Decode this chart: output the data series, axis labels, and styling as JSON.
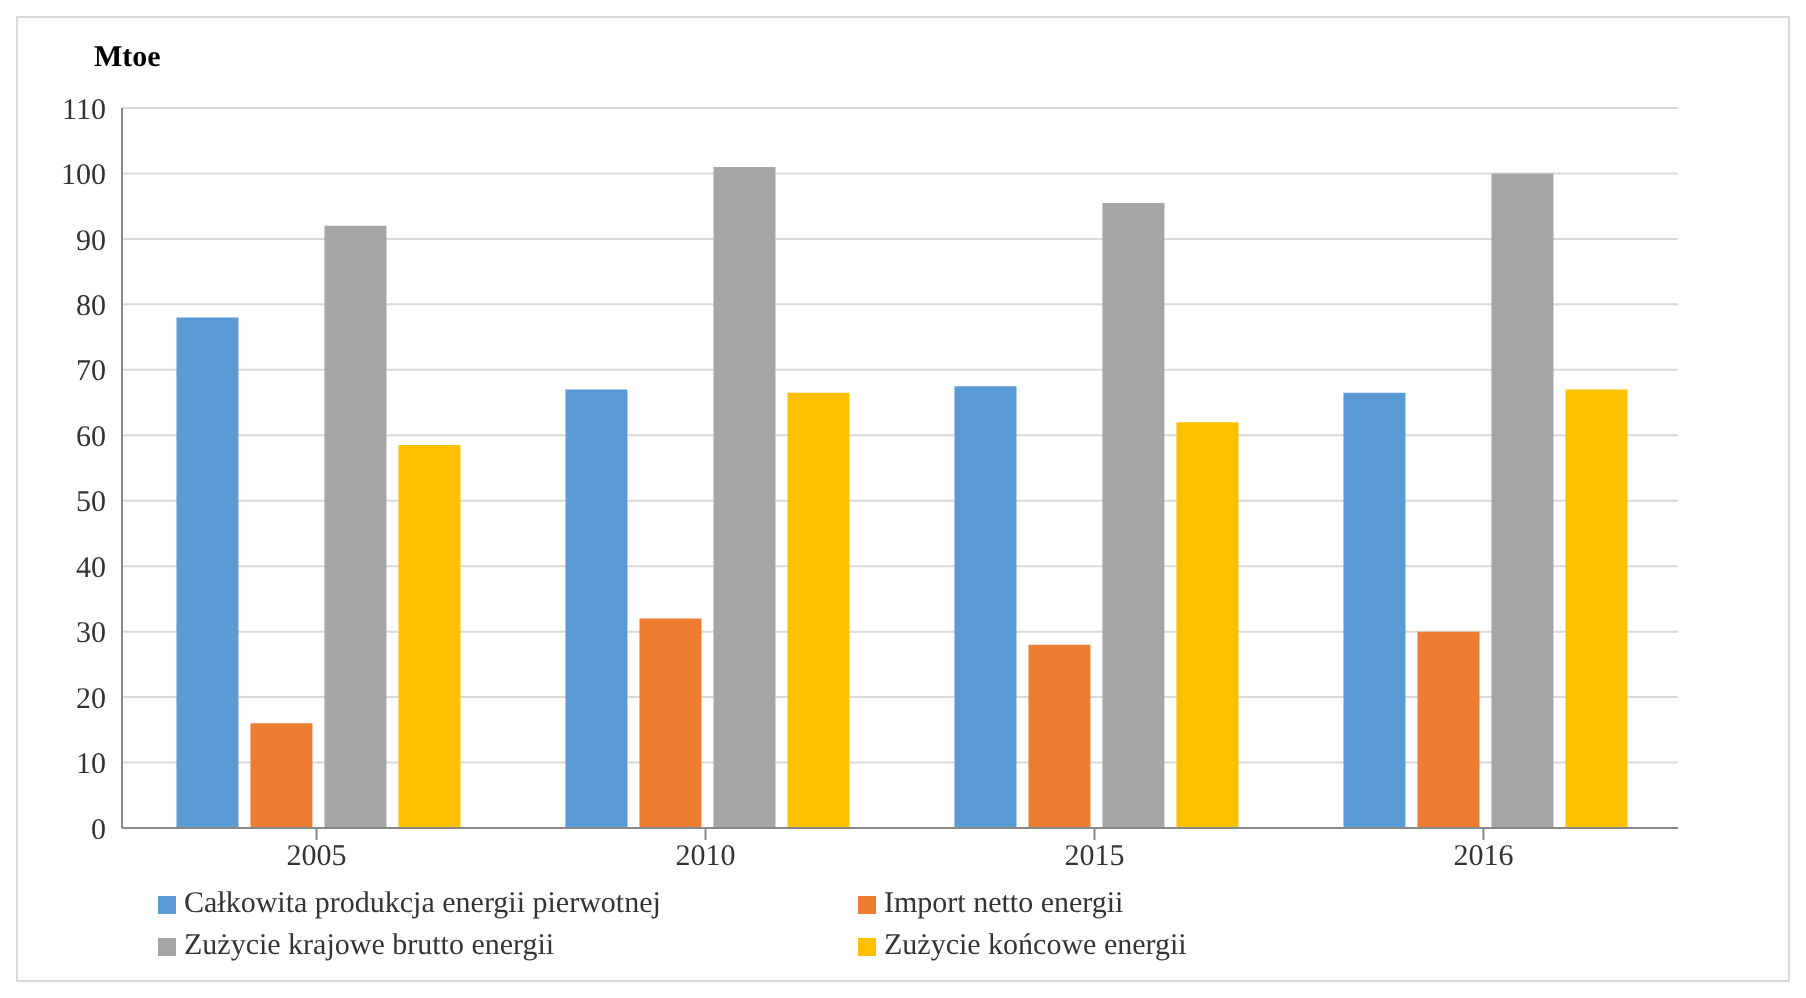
{
  "chart_data": {
    "type": "bar",
    "ylabel": "Mtoe",
    "categories": [
      "2005",
      "2010",
      "2015",
      "2016"
    ],
    "series": [
      {
        "name": "Całkowita produkcja energii pierwotnej",
        "color": "#5b9bd5",
        "values": [
          78,
          67,
          67.5,
          66.5
        ]
      },
      {
        "name": "Import netto energii",
        "color": "#ed7d31",
        "values": [
          16,
          32,
          28,
          30
        ]
      },
      {
        "name": "Zużycie krajowe brutto energii",
        "color": "#a5a5a5",
        "values": [
          92,
          101,
          95.5,
          100
        ]
      },
      {
        "name": "Zużycie końcowe energii",
        "color": "#ffc000",
        "values": [
          58.5,
          66.5,
          62,
          67
        ]
      }
    ],
    "ylim": [
      0,
      110
    ],
    "yticks": [
      0,
      10,
      20,
      30,
      40,
      50,
      60,
      70,
      80,
      90,
      100,
      110
    ],
    "grid": "y",
    "legend": "bottom"
  }
}
